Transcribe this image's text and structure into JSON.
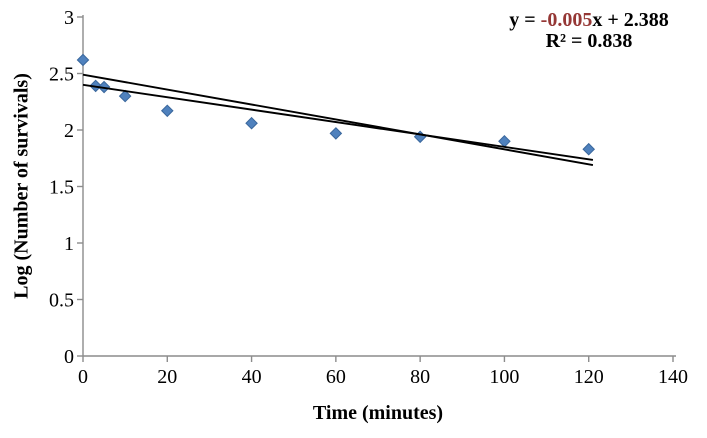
{
  "chart_data": {
    "type": "scatter",
    "title": "",
    "xlabel": "Time (minutes)",
    "ylabel": "Log (Number of survivals)",
    "xlim": [
      0,
      140
    ],
    "ylim": [
      0,
      3
    ],
    "xticks": [
      "0",
      "20",
      "40",
      "60",
      "80",
      "100",
      "120",
      "140"
    ],
    "yticks": [
      "0",
      "0.5",
      "1",
      "1.5",
      "2",
      "2.5",
      "3"
    ],
    "grid": false,
    "legend": false,
    "axis_color": "#8C8C8C",
    "text_color": "#000000",
    "series": [
      {
        "name": "survival-data",
        "marker": "diamond",
        "marker_fill": "#4F81BD",
        "marker_edge": "#3A679C",
        "x": [
          0,
          3,
          5,
          10,
          20,
          40,
          60,
          80,
          100,
          120
        ],
        "y": [
          2.62,
          2.39,
          2.38,
          2.3,
          2.17,
          2.06,
          1.97,
          1.94,
          1.9,
          1.83
        ]
      }
    ],
    "lines": [
      {
        "name": "secondary-fit-line",
        "color": "#000000",
        "x": [
          0,
          121
        ],
        "y": [
          2.49,
          1.69
        ]
      },
      {
        "name": "trendline",
        "color": "#000000",
        "x": [
          0,
          121
        ],
        "y": [
          2.4,
          1.735
        ]
      }
    ],
    "annotation": {
      "equation_prefix": "y = ",
      "equation_slope": "-0.005",
      "equation_suffix": "x + 2.388",
      "slope_color": "#953735",
      "r_squared": "R² = 0.838"
    }
  }
}
